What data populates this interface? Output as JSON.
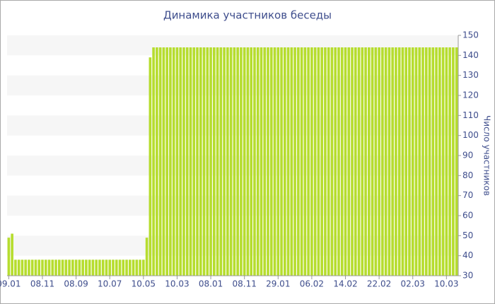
{
  "chart_data": {
    "type": "bar",
    "title": "Динамика участников беседы",
    "y_label": "Число участников",
    "categories": [
      "09.01",
      null,
      null,
      null,
      null,
      null,
      null,
      null,
      null,
      null,
      "08.11",
      null,
      null,
      null,
      null,
      null,
      null,
      null,
      null,
      null,
      "08.09",
      null,
      null,
      null,
      null,
      null,
      null,
      null,
      null,
      null,
      "10.07",
      null,
      null,
      null,
      null,
      null,
      null,
      null,
      null,
      null,
      "10.05",
      null,
      null,
      null,
      null,
      null,
      null,
      null,
      null,
      null,
      "10.03",
      null,
      null,
      null,
      null,
      null,
      null,
      null,
      null,
      null,
      "08.01",
      null,
      null,
      null,
      null,
      null,
      null,
      null,
      null,
      null,
      "08.11",
      null,
      null,
      null,
      null,
      null,
      null,
      null,
      null,
      null,
      "29.01",
      null,
      null,
      null,
      null,
      null,
      null,
      null,
      null,
      null,
      "06.02",
      null,
      null,
      null,
      null,
      null,
      null,
      null,
      null,
      null,
      "14.02",
      null,
      null,
      null,
      null,
      null,
      null,
      null,
      null,
      null,
      "22.02",
      null,
      null,
      null,
      null,
      null,
      null,
      null,
      null,
      null,
      "02.03",
      null,
      null,
      null,
      null,
      null,
      null,
      null,
      null,
      null,
      "10.03",
      null,
      null,
      null
    ],
    "values": [
      49,
      51,
      38,
      38,
      38,
      38,
      38,
      38,
      38,
      38,
      38,
      38,
      38,
      38,
      38,
      38,
      38,
      38,
      38,
      38,
      38,
      38,
      38,
      38,
      38,
      38,
      38,
      38,
      38,
      38,
      38,
      38,
      38,
      38,
      38,
      38,
      38,
      38,
      38,
      38,
      38,
      49,
      139,
      144,
      144,
      144,
      144,
      144,
      144,
      144,
      144,
      144,
      144,
      144,
      144,
      144,
      144,
      144,
      144,
      144,
      144,
      144,
      144,
      144,
      144,
      144,
      144,
      144,
      144,
      144,
      144,
      144,
      144,
      144,
      144,
      144,
      144,
      144,
      144,
      144,
      144,
      144,
      144,
      144,
      144,
      144,
      144,
      144,
      144,
      144,
      144,
      144,
      144,
      144,
      144,
      144,
      144,
      144,
      144,
      144,
      144,
      144,
      144,
      144,
      144,
      144,
      144,
      144,
      144,
      144,
      144,
      144,
      144,
      144,
      144,
      144,
      144,
      144,
      144,
      144,
      144,
      144,
      144,
      144,
      144,
      144,
      144,
      144,
      144,
      144,
      144,
      144,
      144,
      144
    ],
    "color": "#b6dd2e",
    "ylim": [
      30,
      150
    ],
    "yticks": [
      30,
      40,
      50,
      60,
      70,
      80,
      90,
      100,
      110,
      120,
      130,
      140,
      150
    ],
    "y_axis_side": "right",
    "grid_bands": true
  }
}
